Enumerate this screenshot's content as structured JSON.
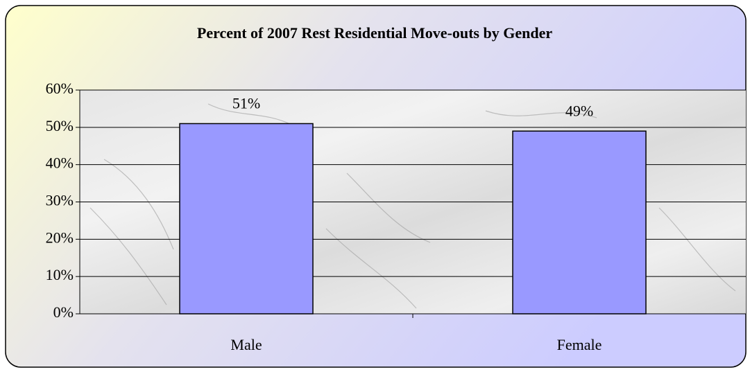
{
  "chart_data": {
    "type": "bar",
    "title": "Percent of 2007 Rest Residential Move-outs by Gender",
    "categories": [
      "Male",
      "Female"
    ],
    "values": [
      51,
      49
    ],
    "value_labels": [
      "51%",
      "49%"
    ],
    "color": "#9999ff",
    "ylim": [
      0,
      60
    ],
    "yticks": [
      {
        "value": 0,
        "label": "0%"
      },
      {
        "value": 10,
        "label": "10%"
      },
      {
        "value": 20,
        "label": "20%"
      },
      {
        "value": 30,
        "label": "30%"
      },
      {
        "value": 40,
        "label": "40%"
      },
      {
        "value": 50,
        "label": "50%"
      },
      {
        "value": 60,
        "label": "60%"
      }
    ],
    "grid": true
  }
}
